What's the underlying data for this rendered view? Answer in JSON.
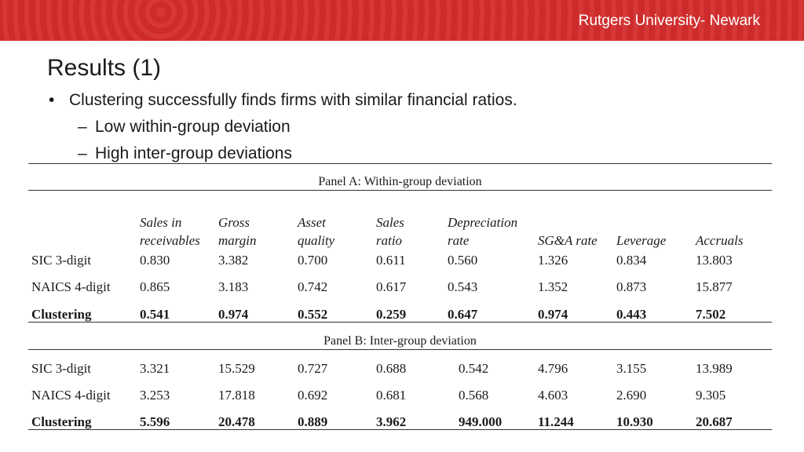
{
  "header": {
    "institution": "Rutgers University- Newark"
  },
  "slide": {
    "title": "Results (1)",
    "bullet": "Clustering successfully finds firms with similar financial ratios.",
    "subbullets": [
      "Low within-group deviation",
      "High inter-group deviations"
    ]
  },
  "table": {
    "panelA_title": "Panel A: Within-group deviation",
    "panelB_title": "Panel B: Inter-group deviation",
    "col_headers": [
      [
        "Sales in",
        "receivables"
      ],
      [
        "Gross",
        "margin"
      ],
      [
        "Asset",
        "quality"
      ],
      [
        "Sales",
        "ratio"
      ],
      [
        "Depreciation",
        "rate"
      ],
      [
        "",
        "SG&A rate"
      ],
      [
        "",
        "Leverage"
      ],
      [
        "",
        "Accruals"
      ]
    ],
    "panelA_rows": [
      {
        "label": "SIC 3-digit",
        "values": [
          "0.830",
          "3.382",
          "0.700",
          "0.611",
          "0.560",
          "1.326",
          "0.834",
          "13.803"
        ]
      },
      {
        "label": "NAICS 4-digit",
        "values": [
          "0.865",
          "3.183",
          "0.742",
          "0.617",
          "0.543",
          "1.352",
          "0.873",
          "15.877"
        ]
      },
      {
        "label": "Clustering",
        "values": [
          "0.541",
          "0.974",
          "0.552",
          "0.259",
          "0.647",
          "0.974",
          "0.443",
          "7.502"
        ]
      }
    ],
    "panelB_rows": [
      {
        "label": "SIC 3-digit",
        "values": [
          "3.321",
          "15.529",
          "0.727",
          "0.688",
          "0.542",
          "4.796",
          "3.155",
          "13.989"
        ]
      },
      {
        "label": "NAICS 4-digit",
        "values": [
          "3.253",
          "17.818",
          "0.692",
          "0.681",
          "0.568",
          "4.603",
          "2.690",
          "9.305"
        ]
      },
      {
        "label": "Clustering",
        "values": [
          "5.596",
          "20.478",
          "0.889",
          "3.962",
          "949.000",
          "11.244",
          "10.930",
          "20.687"
        ]
      }
    ]
  }
}
